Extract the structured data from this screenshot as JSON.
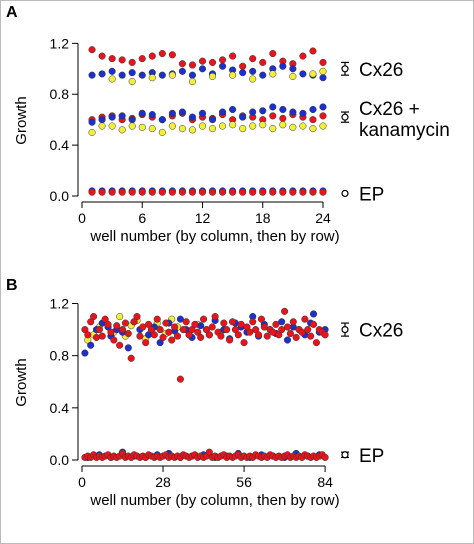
{
  "figure": {
    "border_color": "#bbbbbb",
    "colors": {
      "red": "#e8141c",
      "blue": "#1c2fcf",
      "yellow": "#f2ef3a",
      "outline": "#333333"
    }
  },
  "chart_data": [
    {
      "panel": "A",
      "type": "scatter",
      "xlabel": "well number (by column, then by row)",
      "ylabel": "Growth",
      "xlim": [
        0,
        24.5
      ],
      "ylim": [
        0,
        1.25
      ],
      "xticks": [
        0,
        6,
        12,
        18,
        24
      ],
      "yticks": [
        0.0,
        0.4,
        0.8,
        1.2
      ],
      "ytick_labels": [
        "0.0",
        "0.4",
        "0.8",
        "1.2"
      ],
      "groups": [
        {
          "label": "Cx26",
          "mean": 1.0,
          "err": 0.05
        },
        {
          "label": "Cx26 +",
          "label_line2": "kanamycin",
          "mean": 0.62,
          "err": 0.04
        },
        {
          "label": "EP",
          "mean": 0.02,
          "err": 0.005
        }
      ],
      "series": [
        {
          "color": "red",
          "x": [
            1,
            2,
            3,
            4,
            5,
            6,
            7,
            8,
            9,
            10,
            11,
            12,
            13,
            14,
            15,
            16,
            17,
            18,
            19,
            20,
            21,
            22,
            23,
            24
          ],
          "y": [
            1.15,
            1.1,
            1.08,
            1.07,
            1.05,
            1.08,
            1.1,
            1.12,
            1.11,
            1.04,
            1.03,
            1.06,
            1.05,
            1.07,
            1.1,
            1.02,
            1.08,
            1.05,
            1.12,
            1.06,
            1.04,
            1.1,
            1.14,
            1.05
          ]
        },
        {
          "color": "blue",
          "x": [
            1,
            2,
            3,
            4,
            5,
            6,
            7,
            8,
            9,
            10,
            11,
            12,
            13,
            14,
            15,
            16,
            17,
            18,
            19,
            20,
            21,
            22,
            23,
            24
          ],
          "y": [
            0.95,
            0.96,
            0.98,
            0.95,
            0.97,
            0.95,
            0.97,
            0.95,
            0.96,
            0.98,
            0.95,
            1.0,
            0.96,
            1.02,
            0.99,
            0.97,
            0.98,
            0.95,
            1.0,
            1.02,
            1.0,
            0.96,
            0.95,
            0.93
          ]
        },
        {
          "color": "yellow",
          "x": [
            3,
            5,
            7,
            9,
            11,
            13,
            15,
            17,
            19,
            21,
            23,
            24
          ],
          "y": [
            0.92,
            0.9,
            0.93,
            0.95,
            0.9,
            0.94,
            0.95,
            0.92,
            0.96,
            0.94,
            0.96,
            0.98
          ]
        },
        {
          "color": "red",
          "x": [
            1,
            2,
            3,
            4,
            5,
            6,
            7,
            8,
            9,
            10,
            11,
            12,
            13,
            14,
            15,
            16,
            17,
            18,
            19,
            20,
            21,
            22,
            23,
            24
          ],
          "y": [
            0.6,
            0.62,
            0.63,
            0.6,
            0.61,
            0.64,
            0.62,
            0.6,
            0.63,
            0.65,
            0.6,
            0.62,
            0.61,
            0.64,
            0.6,
            0.63,
            0.62,
            0.6,
            0.63,
            0.61,
            0.64,
            0.62,
            0.6,
            0.63
          ]
        },
        {
          "color": "blue",
          "x": [
            1,
            2,
            3,
            4,
            5,
            6,
            7,
            8,
            9,
            10,
            11,
            12,
            13,
            14,
            15,
            16,
            17,
            18,
            19,
            20,
            21,
            22,
            23,
            24
          ],
          "y": [
            0.58,
            0.6,
            0.62,
            0.63,
            0.6,
            0.65,
            0.64,
            0.6,
            0.65,
            0.66,
            0.62,
            0.65,
            0.6,
            0.66,
            0.68,
            0.62,
            0.66,
            0.67,
            0.7,
            0.68,
            0.66,
            0.65,
            0.68,
            0.7
          ]
        },
        {
          "color": "yellow",
          "x": [
            1,
            2,
            3,
            4,
            5,
            6,
            7,
            8,
            9,
            10,
            11,
            12,
            13,
            14,
            15,
            16,
            17,
            18,
            19,
            20,
            21,
            22,
            23,
            24
          ],
          "y": [
            0.5,
            0.55,
            0.55,
            0.52,
            0.55,
            0.54,
            0.53,
            0.5,
            0.55,
            0.53,
            0.52,
            0.55,
            0.53,
            0.55,
            0.56,
            0.53,
            0.55,
            0.56,
            0.53,
            0.56,
            0.54,
            0.55,
            0.53,
            0.55
          ]
        },
        {
          "color": "blue",
          "x": [
            1,
            2,
            3,
            4,
            5,
            6,
            7,
            8,
            9,
            10,
            11,
            12,
            13,
            14,
            15,
            16,
            17,
            18,
            19,
            20,
            21,
            22,
            23,
            24
          ],
          "y": [
            0.04,
            0.04,
            0.04,
            0.04,
            0.04,
            0.04,
            0.04,
            0.04,
            0.04,
            0.04,
            0.04,
            0.04,
            0.04,
            0.04,
            0.04,
            0.04,
            0.04,
            0.04,
            0.04,
            0.04,
            0.04,
            0.04,
            0.04,
            0.04
          ]
        },
        {
          "color": "red",
          "x": [
            1,
            2,
            3,
            4,
            5,
            6,
            7,
            8,
            9,
            10,
            11,
            12,
            13,
            14,
            15,
            16,
            17,
            18,
            19,
            20,
            21,
            22,
            23,
            24
          ],
          "y": [
            0.03,
            0.03,
            0.03,
            0.03,
            0.03,
            0.03,
            0.03,
            0.03,
            0.03,
            0.03,
            0.03,
            0.03,
            0.03,
            0.03,
            0.03,
            0.03,
            0.03,
            0.03,
            0.03,
            0.03,
            0.03,
            0.03,
            0.03,
            0.03
          ]
        }
      ]
    },
    {
      "panel": "B",
      "type": "scatter",
      "xlabel": "well number (by column, then by row)",
      "ylabel": "Growth",
      "xlim": [
        0,
        85
      ],
      "ylim": [
        0,
        1.25
      ],
      "xticks": [
        0,
        28,
        56,
        84
      ],
      "yticks": [
        0.0,
        0.4,
        0.8,
        1.2
      ],
      "ytick_labels": [
        "0.0",
        "0.4",
        "0.8",
        "1.2"
      ],
      "groups": [
        {
          "label": "Cx26",
          "mean": 1.0,
          "err": 0.05
        },
        {
          "label": "EP",
          "mean": 0.04,
          "err": 0.02
        }
      ],
      "series": [
        {
          "color": "yellow",
          "x": [
            2,
            4,
            6,
            8,
            11,
            13,
            15,
            17,
            19,
            22,
            24,
            26,
            29,
            31,
            33,
            37,
            40,
            43,
            48
          ],
          "y": [
            0.92,
            0.96,
            1.02,
            1.06,
            0.98,
            1.1,
            0.95,
            1.03,
            1.07,
            0.93,
            1.0,
            1.05,
            0.97,
            1.08,
            1.02,
            0.96,
            1.04,
            1.0,
            0.98
          ]
        },
        {
          "color": "blue",
          "x": [
            1,
            3,
            5,
            7,
            9,
            10,
            12,
            14,
            16,
            18,
            20,
            23,
            25,
            27,
            30,
            32,
            34,
            36,
            38,
            41,
            44,
            46,
            49,
            51,
            53,
            55,
            57,
            59,
            61,
            63,
            65,
            67,
            69,
            71,
            73,
            75,
            77,
            79,
            80,
            82,
            84
          ],
          "y": [
            0.82,
            0.88,
            1.0,
            1.05,
            1.02,
            0.95,
            1.0,
            0.98,
            0.86,
            1.06,
            1.0,
            0.96,
            1.02,
            0.9,
            1.05,
            0.99,
            1.08,
            1.0,
            0.94,
            1.03,
            0.96,
            1.07,
            1.0,
            0.93,
            1.05,
            1.02,
            0.98,
            1.1,
            0.95,
            1.04,
            1.0,
            0.97,
            1.06,
            0.92,
            1.02,
            1.0,
            0.96,
            1.05,
            1.12,
            0.98,
            1.0
          ]
        },
        {
          "color": "red",
          "x": [
            1,
            2,
            3,
            4,
            5,
            6,
            7,
            8,
            9,
            10,
            11,
            12,
            13,
            14,
            15,
            16,
            17,
            18,
            19,
            20,
            21,
            22,
            23,
            24,
            25,
            26,
            27,
            28,
            29,
            30,
            31,
            32,
            33,
            34,
            35,
            36,
            37,
            38,
            39,
            40,
            41,
            42,
            43,
            44,
            45,
            46,
            47,
            48,
            49,
            50,
            51,
            52,
            53,
            54,
            55,
            56,
            57,
            58,
            59,
            60,
            61,
            62,
            63,
            64,
            65,
            66,
            67,
            68,
            69,
            70,
            71,
            72,
            73,
            74,
            75,
            76,
            77,
            78,
            79,
            80,
            81,
            82,
            83,
            84
          ],
          "y": [
            1.0,
            0.96,
            1.06,
            1.1,
            0.94,
            1.0,
            0.95,
            1.08,
            1.04,
            0.98,
            0.92,
            1.03,
            0.88,
            1.0,
            1.05,
            0.97,
            0.78,
            1.06,
            1.1,
            0.95,
            1.02,
            0.9,
            1.04,
            1.0,
            0.96,
            1.08,
            1.0,
            0.94,
            1.05,
            0.98,
            0.92,
            1.02,
            0.95,
            0.62,
            1.0,
            1.06,
            0.96,
            1.0,
            1.04,
            0.98,
            0.94,
            1.08,
            1.0,
            0.96,
            1.02,
            1.1,
            0.98,
            0.95,
            1.05,
            1.0,
            0.92,
            1.06,
            1.0,
            0.96,
            1.04,
            0.9,
            1.02,
            0.98,
            1.06,
            1.0,
            0.96,
            1.08,
            1.02,
            0.95,
            1.0,
            0.98,
            1.04,
            0.96,
            1.0,
            1.14,
            1.02,
            0.97,
            1.06,
            0.94,
            1.0,
            0.98,
            1.08,
            1.0,
            0.95,
            1.04,
            0.9,
            1.0,
            0.98,
            0.96
          ]
        },
        {
          "color": "blue",
          "x": [
            2,
            6,
            10,
            14,
            18,
            22,
            26,
            30,
            34,
            38,
            42,
            46,
            50,
            54,
            58,
            62,
            66,
            70,
            74,
            78,
            82
          ],
          "y": [
            0.02,
            0.04,
            0.02,
            0.06,
            0.03,
            0.02,
            0.04,
            0.05,
            0.02,
            0.03,
            0.04,
            0.02,
            0.03,
            0.05,
            0.02,
            0.04,
            0.03,
            0.02,
            0.05,
            0.03,
            0.04
          ]
        },
        {
          "color": "red",
          "x": [
            1,
            2,
            3,
            4,
            5,
            6,
            7,
            8,
            9,
            10,
            11,
            12,
            13,
            14,
            15,
            16,
            17,
            18,
            19,
            20,
            21,
            22,
            23,
            24,
            25,
            26,
            27,
            28,
            29,
            30,
            31,
            32,
            33,
            34,
            35,
            36,
            37,
            38,
            39,
            40,
            41,
            42,
            43,
            44,
            45,
            46,
            47,
            48,
            49,
            50,
            51,
            52,
            53,
            54,
            55,
            56,
            57,
            58,
            59,
            60,
            61,
            62,
            63,
            64,
            65,
            66,
            67,
            68,
            69,
            70,
            71,
            72,
            73,
            74,
            75,
            76,
            77,
            78,
            79,
            80,
            81,
            82,
            83,
            84
          ],
          "y": [
            0.02,
            0.03,
            0.02,
            0.04,
            0.02,
            0.03,
            0.02,
            0.03,
            0.04,
            0.02,
            0.03,
            0.02,
            0.03,
            0.05,
            0.02,
            0.03,
            0.02,
            0.04,
            0.03,
            0.02,
            0.03,
            0.02,
            0.04,
            0.03,
            0.02,
            0.03,
            0.02,
            0.03,
            0.04,
            0.02,
            0.03,
            0.02,
            0.03,
            0.02,
            0.04,
            0.03,
            0.02,
            0.03,
            0.04,
            0.02,
            0.03,
            0.02,
            0.03,
            0.06,
            0.02,
            0.03,
            0.02,
            0.03,
            0.04,
            0.02,
            0.03,
            0.02,
            0.03,
            0.04,
            0.02,
            0.03,
            0.02,
            0.03,
            0.02,
            0.04,
            0.03,
            0.02,
            0.03,
            0.02,
            0.04,
            0.03,
            0.02,
            0.03,
            0.02,
            0.03,
            0.04,
            0.02,
            0.03,
            0.02,
            0.03,
            0.02,
            0.04,
            0.03,
            0.02,
            0.03,
            0.02,
            0.03,
            0.04,
            0.02
          ]
        }
      ]
    }
  ]
}
